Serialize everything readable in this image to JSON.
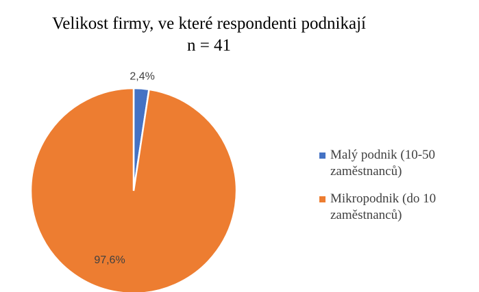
{
  "chart_data": {
    "type": "pie",
    "title": "Velikost firmy, ve které respondenti podnikají",
    "subtitle": "n = 41",
    "categories": [
      "Malý podnik (10-50 zaměstnanců)",
      "Mikropodnik (do 10 zaměstnanců)"
    ],
    "values": [
      2.4,
      97.6
    ],
    "value_labels": [
      "2,4%",
      "97,6%"
    ],
    "colors": [
      "#4472c4",
      "#ed7d31"
    ],
    "legend": "right"
  }
}
